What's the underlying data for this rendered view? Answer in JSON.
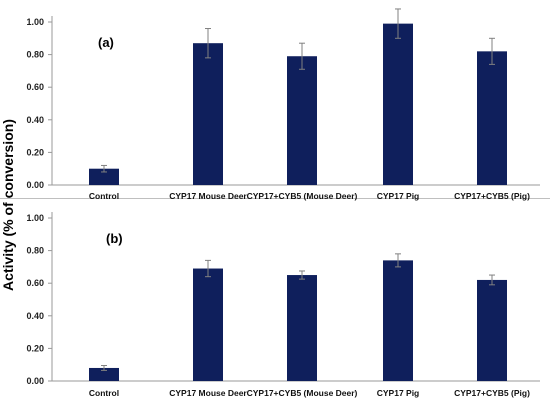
{
  "figure": {
    "ylabel": "Activity (% of conversion)"
  },
  "colors": {
    "bar": "#0f1f5c",
    "error_bar": "#808080",
    "axis": "#999999",
    "separator": "#bfbfbf"
  },
  "chart_data": [
    {
      "type": "bar",
      "panel_label": "(a)",
      "categories": [
        "Control",
        "CYP17 Mouse Deer",
        "CYP17+CYB5 (Mouse Deer)",
        "CYP17 Pig",
        "CYP17+CYB5  (Pig)"
      ],
      "values": [
        0.1,
        0.87,
        0.79,
        0.99,
        0.82
      ],
      "errors": [
        0.02,
        0.09,
        0.08,
        0.09,
        0.08
      ],
      "ylim": [
        0,
        1.0
      ],
      "yticks": [
        "0.00",
        "0.20",
        "0.40",
        "0.60",
        "0.80",
        "1.00"
      ],
      "grid": false
    },
    {
      "type": "bar",
      "panel_label": "(b)",
      "categories": [
        "Control",
        "CYP17 Mouse Deer",
        "CYP17+CYB5 (Mouse Deer)",
        "CYP17 Pig",
        "CYP17+CYB5 (Pig)"
      ],
      "values": [
        0.08,
        0.69,
        0.65,
        0.74,
        0.62
      ],
      "errors": [
        0.015,
        0.05,
        0.025,
        0.04,
        0.03
      ],
      "ylim": [
        0,
        1.0
      ],
      "yticks": [
        "0.00",
        "0.20",
        "0.40",
        "0.60",
        "0.80",
        "1.00"
      ],
      "grid": false
    }
  ]
}
